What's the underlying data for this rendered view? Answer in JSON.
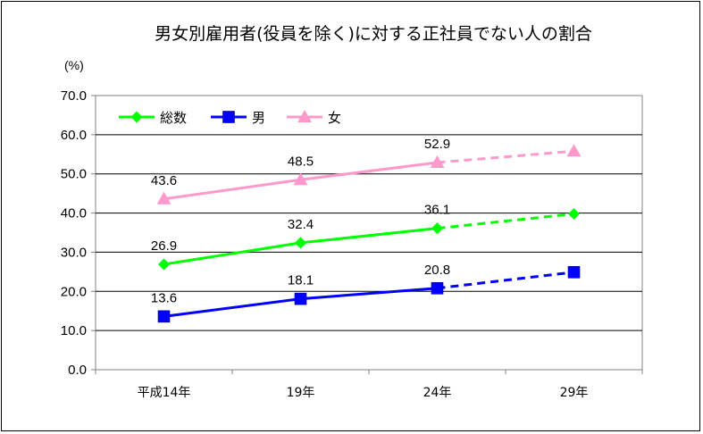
{
  "chart_data": {
    "type": "line",
    "title": "男女別雇用者(役員を除く)に対する正社員でない人の割合",
    "unit": "(%)",
    "categories": [
      "平成14年",
      "19年",
      "24年",
      "29年"
    ],
    "ylim": [
      0,
      70
    ],
    "yticks": [
      "0.0",
      "10.0",
      "20.0",
      "30.0",
      "40.0",
      "50.0",
      "60.0",
      "70.0"
    ],
    "grid": true,
    "legend_position": "top-left",
    "series": [
      {
        "name": "総数",
        "values": [
          26.9,
          32.4,
          36.1,
          39.8
        ],
        "labels": [
          "26.9",
          "32.4",
          "36.1",
          ""
        ],
        "color": "#00ff00",
        "marker": "diamond"
      },
      {
        "name": "男",
        "values": [
          13.6,
          18.1,
          20.8,
          24.9
        ],
        "labels": [
          "13.6",
          "18.1",
          "20.8",
          ""
        ],
        "color": "#0000ff",
        "marker": "square"
      },
      {
        "name": "女",
        "values": [
          43.6,
          48.5,
          52.9,
          55.8
        ],
        "labels": [
          "43.6",
          "48.5",
          "52.9",
          ""
        ],
        "color": "#ff99cc",
        "marker": "triangle"
      }
    ],
    "dashed_from_index": 2
  }
}
